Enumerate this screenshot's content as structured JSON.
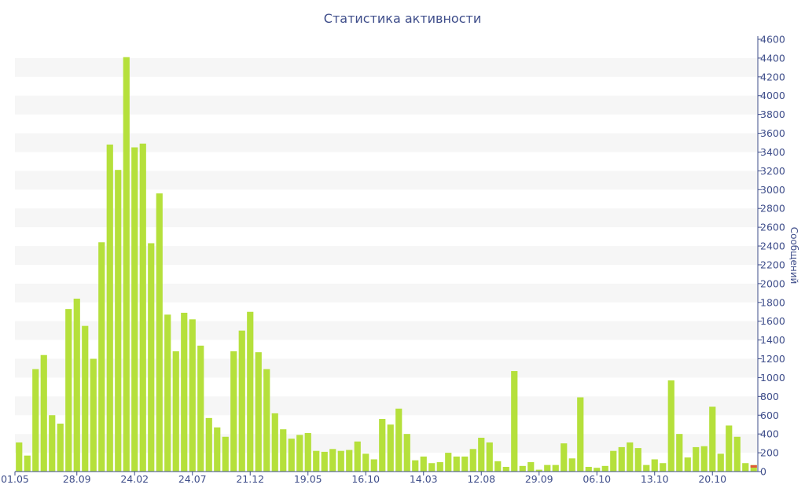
{
  "chart_data": {
    "type": "bar",
    "title": "Статистика активности",
    "ylabel": "Сообщений",
    "xlabel": "",
    "ylim": [
      0,
      4600
    ],
    "y_ticks": [
      0,
      200,
      400,
      600,
      800,
      1000,
      1200,
      1400,
      1600,
      1800,
      2000,
      2200,
      2400,
      2600,
      2800,
      3000,
      3200,
      3400,
      3600,
      3800,
      4000,
      4200,
      4400,
      4600
    ],
    "x_tick_labels": [
      "01.05",
      "28.09",
      "24.02",
      "24.07",
      "21.12",
      "19.05",
      "16.10",
      "14.03",
      "12.08",
      "29.09",
      "06.10",
      "13.10",
      "20.10"
    ],
    "x_tick_bar_index": [
      0,
      7,
      14,
      21,
      28,
      35,
      42,
      49,
      56,
      63,
      70,
      77,
      84
    ],
    "grid": "horizontal-bands",
    "bar_color": "#b5e03b",
    "band_color": "#f6f6f6",
    "text_color": "#3e4d8a",
    "highlight_color": "#e05a3a",
    "values": [
      310,
      170,
      1090,
      1240,
      600,
      510,
      1730,
      1840,
      1550,
      1200,
      2440,
      3480,
      3210,
      4410,
      3450,
      3490,
      2430,
      2960,
      1670,
      1280,
      1690,
      1620,
      1340,
      570,
      470,
      370,
      1280,
      1500,
      1700,
      1270,
      1090,
      620,
      450,
      350,
      390,
      410,
      220,
      210,
      240,
      220,
      230,
      320,
      190,
      130,
      560,
      500,
      670,
      400,
      120,
      160,
      90,
      100,
      200,
      160,
      160,
      240,
      360,
      310,
      110,
      50,
      1070,
      60,
      100,
      20,
      70,
      70,
      300,
      140,
      790,
      50,
      40,
      60,
      220,
      260,
      310,
      250,
      70,
      130,
      90,
      970,
      400,
      150,
      260,
      270,
      690,
      190,
      490,
      370,
      90,
      70
    ]
  }
}
